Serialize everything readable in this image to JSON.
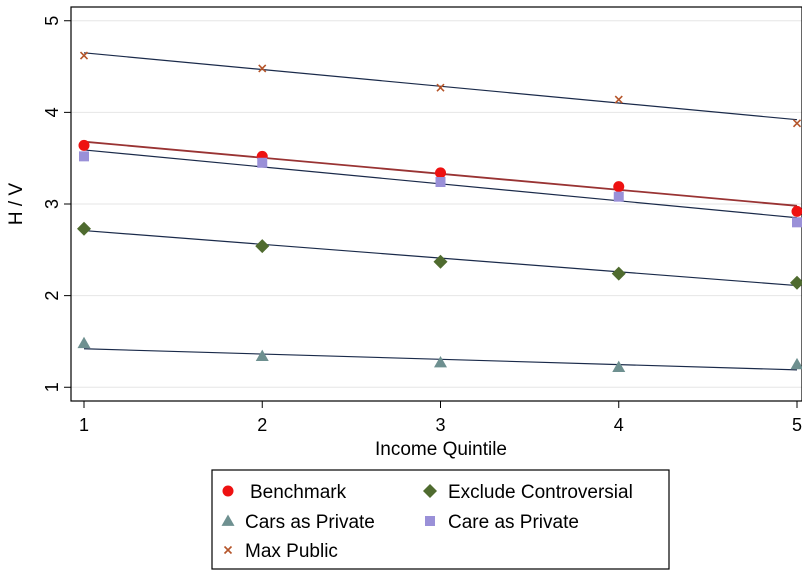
{
  "chart_data": {
    "type": "scatter",
    "xlabel": "Income Quintile",
    "ylabel": "H / V",
    "xlim": [
      1,
      5
    ],
    "ylim": [
      0.85,
      5.15
    ],
    "x_ticks": [
      "1",
      "2",
      "3",
      "4",
      "5"
    ],
    "y_ticks": [
      "1",
      "2",
      "3",
      "4",
      "5"
    ],
    "grid": "horizontal",
    "legend_position": "bottom",
    "x": [
      1,
      2,
      3,
      4,
      5
    ],
    "series": [
      {
        "name": "Benchmark",
        "marker": "circle",
        "color": "#ee1111",
        "values": [
          3.64,
          3.52,
          3.34,
          3.19,
          2.92
        ],
        "fit": [
          3.68,
          2.98
        ],
        "fit_color": "#993333"
      },
      {
        "name": "Exclude Controversial",
        "marker": "diamond",
        "color": "#4f6b2f",
        "values": [
          2.73,
          2.54,
          2.37,
          2.24,
          2.14
        ],
        "fit": [
          2.71,
          2.11
        ],
        "fit_color": "#1a2a4a"
      },
      {
        "name": "Cars as Private",
        "marker": "triangle",
        "color": "#6e9090",
        "values": [
          1.48,
          1.34,
          1.27,
          1.22,
          1.25
        ],
        "fit": [
          1.42,
          1.19
        ],
        "fit_color": "#1a2a4a"
      },
      {
        "name": "Care as Private",
        "marker": "square",
        "color": "#9a90d8",
        "values": [
          3.52,
          3.45,
          3.24,
          3.08,
          2.8
        ],
        "fit": [
          3.59,
          2.85
        ],
        "fit_color": "#1a2a4a"
      },
      {
        "name": "Max Public",
        "marker": "x",
        "color": "#b5552a",
        "values": [
          4.62,
          4.48,
          4.27,
          4.14,
          3.88
        ],
        "fit": [
          4.65,
          3.92
        ],
        "fit_color": "#1a2a4a"
      }
    ]
  }
}
